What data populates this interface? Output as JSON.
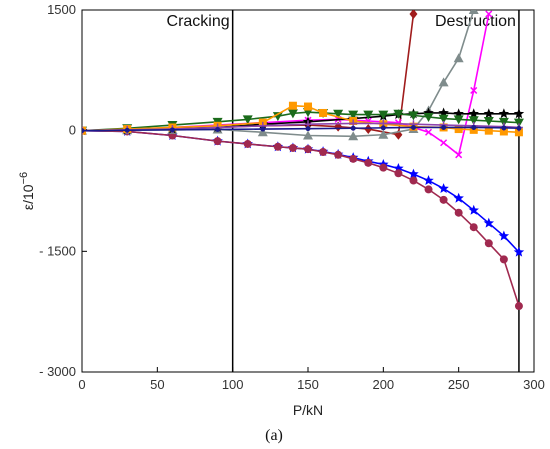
{
  "chart_data": {
    "type": "line",
    "caption": "(a)",
    "xlabel": "P/kN",
    "ylabel": "ε/10",
    "ylabel_exp": "−6",
    "xlim": [
      0,
      300
    ],
    "ylim": [
      -3000,
      1500
    ],
    "xticks": [
      0,
      50,
      100,
      150,
      200,
      250,
      300
    ],
    "yticks": [
      1500,
      0,
      -1500,
      -3000
    ],
    "ytick_labels": [
      "1500",
      "0",
      "- 1500",
      "- 3000"
    ],
    "grid": false,
    "vlines": [
      {
        "x": 100,
        "label": "Cracking"
      },
      {
        "x": 290,
        "label": "Destruction"
      }
    ],
    "series": [
      {
        "color": "#0000ff",
        "marker": "star",
        "x": [
          0,
          30,
          60,
          90,
          110,
          130,
          140,
          150,
          160,
          170,
          180,
          190,
          200,
          210,
          220,
          230,
          240,
          250,
          260,
          270,
          280,
          290
        ],
        "y": [
          0,
          -10,
          -60,
          -130,
          -165,
          -200,
          -215,
          -230,
          -260,
          -295,
          -335,
          -380,
          -420,
          -470,
          -540,
          -620,
          -720,
          -840,
          -990,
          -1150,
          -1310,
          -1510
        ]
      },
      {
        "color": "#a0294f",
        "marker": "circle",
        "x": [
          0,
          30,
          60,
          90,
          110,
          130,
          140,
          150,
          160,
          170,
          180,
          190,
          200,
          210,
          220,
          230,
          240,
          250,
          260,
          270,
          280,
          290
        ],
        "y": [
          0,
          -10,
          -60,
          -130,
          -165,
          -200,
          -215,
          -230,
          -265,
          -300,
          -350,
          -400,
          -460,
          -530,
          -620,
          -730,
          -860,
          -1020,
          -1200,
          -1400,
          -1600,
          -2180
        ]
      },
      {
        "color": "#a01c1c",
        "marker": "diamond",
        "x": [
          0,
          30,
          60,
          90,
          120,
          150,
          170,
          190,
          210,
          220
        ],
        "y": [
          0,
          10,
          30,
          40,
          60,
          70,
          50,
          20,
          -50,
          1450
        ]
      },
      {
        "color": "#7f8c8c",
        "marker": "triangle",
        "x": [
          0,
          30,
          60,
          90,
          120,
          150,
          180,
          200,
          220,
          230,
          240,
          250,
          260
        ],
        "y": [
          0,
          5,
          10,
          15,
          -20,
          -60,
          -70,
          -50,
          20,
          250,
          600,
          900,
          1500
        ]
      },
      {
        "color": "#ff00ff",
        "marker": "x",
        "x": [
          0,
          30,
          60,
          90,
          120,
          150,
          170,
          190,
          210,
          220,
          230,
          240,
          250,
          260,
          270
        ],
        "y": [
          0,
          15,
          40,
          70,
          100,
          130,
          140,
          120,
          100,
          40,
          -20,
          -150,
          -300,
          500,
          1450
        ]
      },
      {
        "color": "#000000",
        "marker": "star",
        "x": [
          0,
          30,
          60,
          90,
          120,
          150,
          180,
          200,
          210,
          220,
          230,
          240,
          250,
          260,
          270,
          280,
          290
        ],
        "y": [
          0,
          10,
          20,
          40,
          80,
          110,
          150,
          180,
          200,
          210,
          220,
          220,
          210,
          210,
          210,
          210,
          210
        ]
      },
      {
        "color": "#1b6b1b",
        "marker": "triangle-down",
        "x": [
          0,
          30,
          60,
          90,
          110,
          130,
          140,
          150,
          160,
          170,
          180,
          190,
          200,
          210,
          220,
          230,
          240,
          250,
          260,
          270,
          280,
          290
        ],
        "y": [
          0,
          30,
          70,
          110,
          140,
          180,
          215,
          230,
          220,
          210,
          200,
          200,
          200,
          210,
          190,
          170,
          150,
          140,
          130,
          120,
          110,
          100
        ]
      },
      {
        "color": "#ff9900",
        "marker": "square",
        "x": [
          0,
          30,
          60,
          90,
          120,
          140,
          150,
          160,
          180,
          200,
          220,
          240,
          250,
          260,
          270,
          280,
          290
        ],
        "y": [
          0,
          20,
          40,
          60,
          100,
          310,
          300,
          220,
          120,
          80,
          50,
          40,
          20,
          10,
          0,
          -10,
          -20
        ]
      },
      {
        "color": "#8e44ad",
        "marker": "plus",
        "x": [
          0,
          30,
          60,
          90,
          120,
          150,
          180,
          200,
          220,
          240,
          260,
          280,
          290
        ],
        "y": [
          0,
          10,
          20,
          40,
          60,
          80,
          90,
          90,
          80,
          70,
          60,
          50,
          40
        ]
      },
      {
        "color": "#1a1a8c",
        "marker": "dot",
        "x": [
          0,
          30,
          60,
          90,
          120,
          150,
          180,
          200,
          220,
          240,
          260,
          280,
          290
        ],
        "y": [
          0,
          5,
          10,
          15,
          20,
          25,
          30,
          35,
          40,
          40,
          40,
          35,
          30
        ]
      }
    ]
  }
}
